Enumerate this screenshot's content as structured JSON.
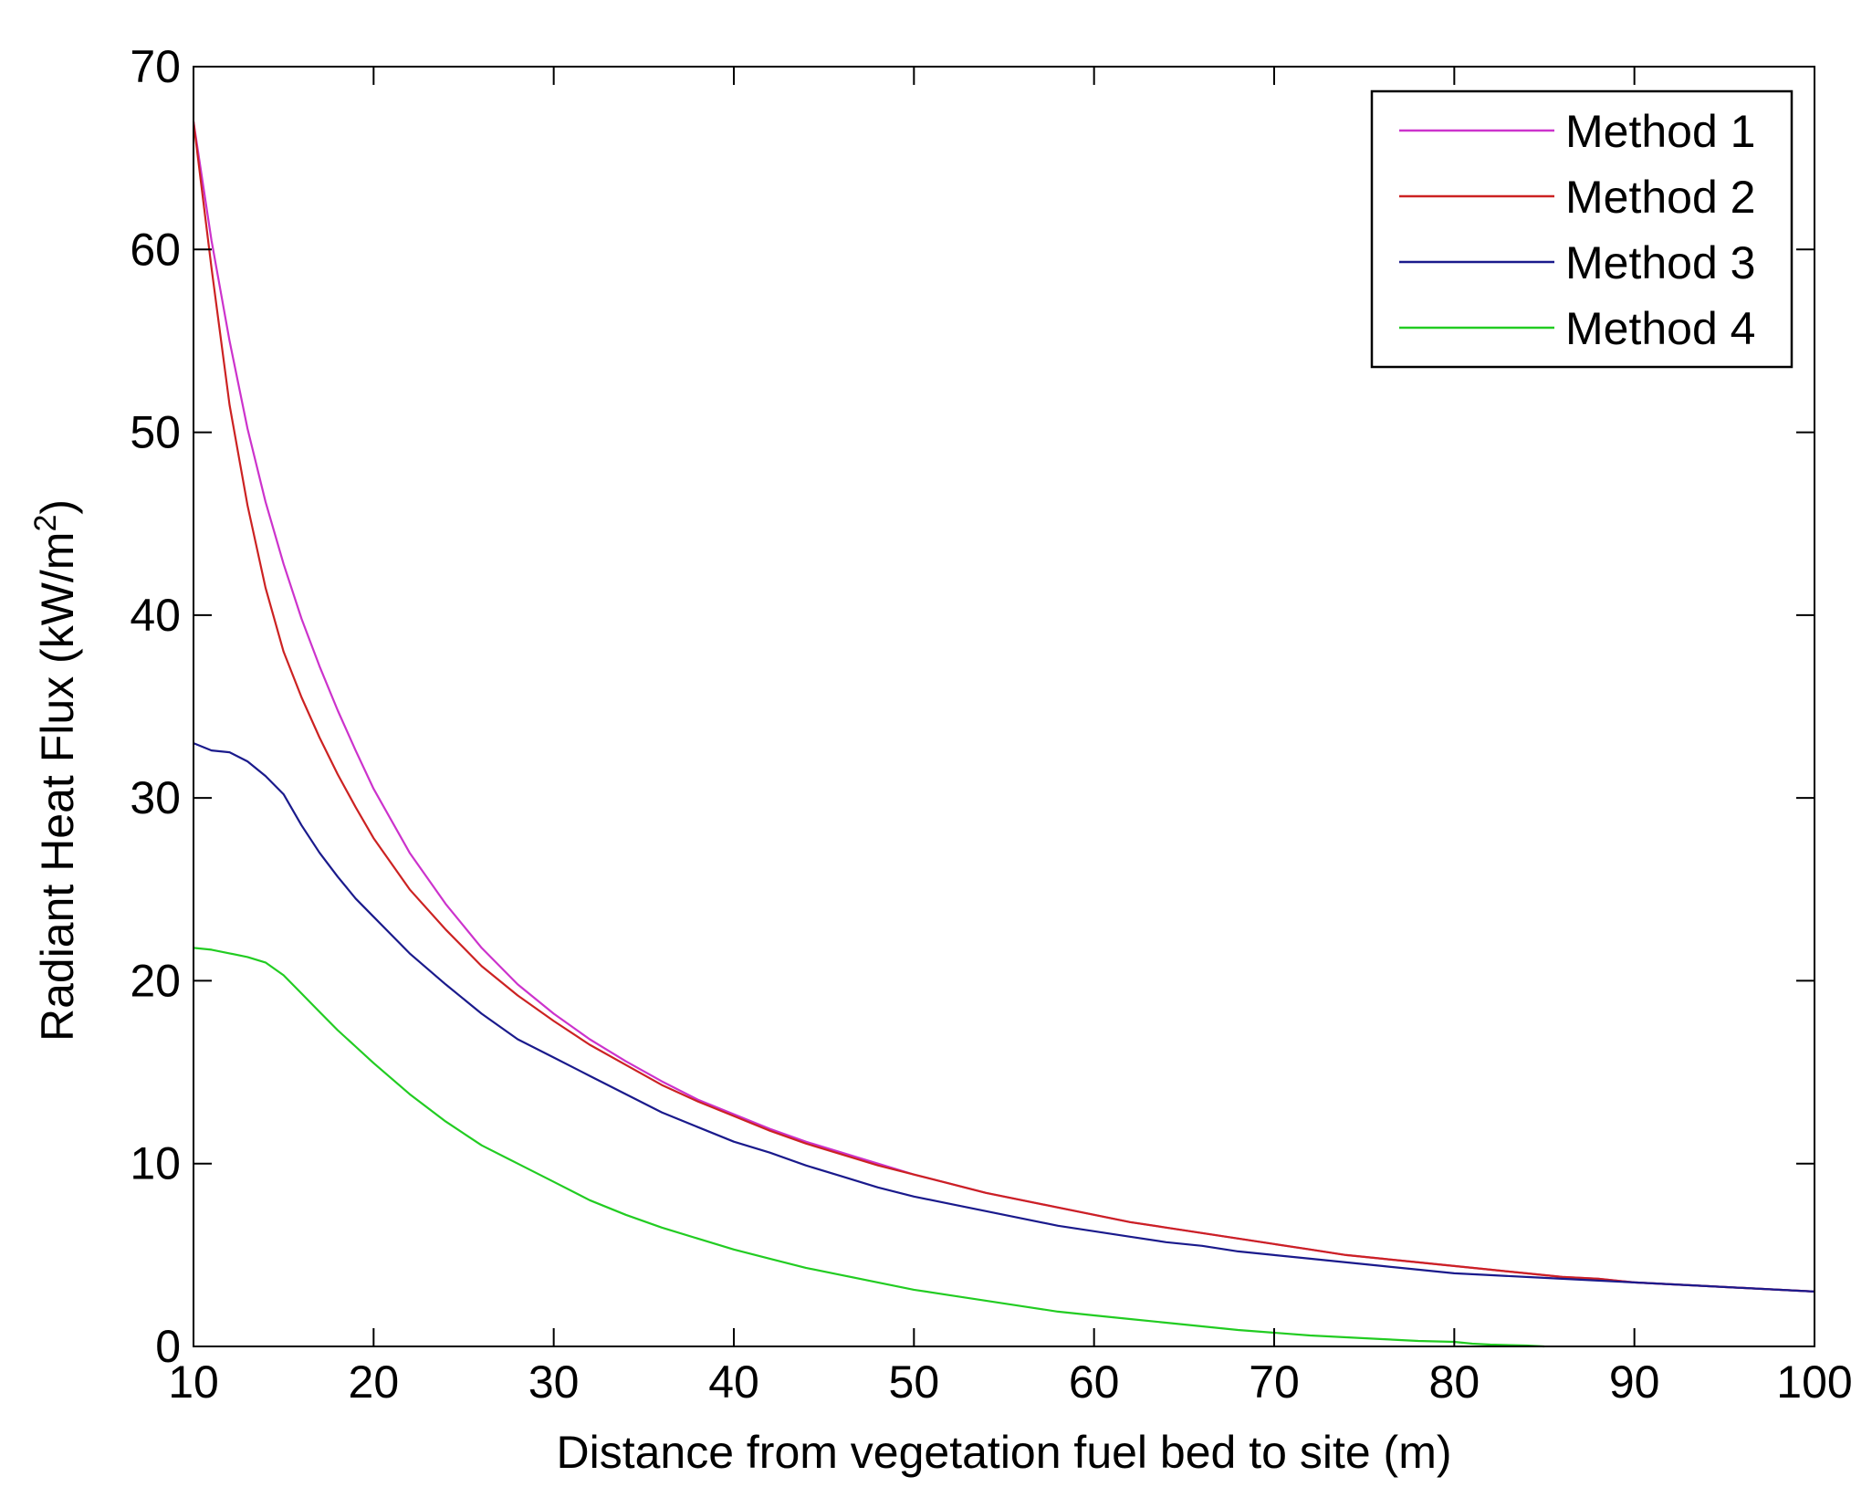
{
  "chart_data": {
    "type": "line",
    "title": "",
    "xlabel": "Distance from vegetation fuel bed to site (m)",
    "ylabel": "Radiant Heat Flux (kW/m",
    "ylabel_superscript": "2",
    "ylabel_suffix": ")",
    "xlim": [
      10,
      100
    ],
    "ylim": [
      0,
      70
    ],
    "xticks": [
      "10",
      "20",
      "30",
      "40",
      "50",
      "60",
      "70",
      "80",
      "90",
      "100"
    ],
    "yticks": [
      "0",
      "10",
      "20",
      "30",
      "40",
      "50",
      "60",
      "70"
    ],
    "grid": false,
    "legend_position": "top-right",
    "series": [
      {
        "name": "Method 1",
        "color": "#cc33cc",
        "x": [
          10,
          11,
          12,
          13,
          14,
          15,
          16,
          17,
          18,
          19,
          20,
          22,
          24,
          26,
          28,
          30,
          32,
          34,
          36,
          38,
          40,
          42,
          44,
          46,
          48,
          50,
          52,
          54,
          56,
          58,
          60,
          62,
          64,
          66,
          68,
          70,
          72,
          74,
          76,
          78,
          80,
          82,
          84,
          86,
          88,
          90,
          92,
          94,
          96,
          98,
          100
        ],
        "y": [
          67,
          60.5,
          55.0,
          50.2,
          46.2,
          42.8,
          39.8,
          37.2,
          34.8,
          32.6,
          30.5,
          27.0,
          24.2,
          21.8,
          19.8,
          18.2,
          16.8,
          15.6,
          14.5,
          13.5,
          12.7,
          11.9,
          11.2,
          10.6,
          10.0,
          9.4,
          8.9,
          8.4,
          8.0,
          7.6,
          7.2,
          6.8,
          6.5,
          6.2,
          5.9,
          5.6,
          5.3,
          5.0,
          4.8,
          4.6,
          4.4,
          4.2,
          4.0,
          3.8,
          3.7,
          3.5,
          3.4,
          3.3,
          3.2,
          3.1,
          3.0
        ]
      },
      {
        "name": "Method 2",
        "color": "#cc2222",
        "x": [
          10,
          11,
          12,
          13,
          14,
          15,
          16,
          17,
          18,
          19,
          20,
          22,
          24,
          26,
          28,
          30,
          32,
          34,
          36,
          38,
          40,
          42,
          44,
          46,
          48,
          50,
          52,
          54,
          56,
          58,
          60,
          62,
          64,
          66,
          68,
          70,
          72,
          74,
          76,
          78,
          80,
          82,
          84,
          86,
          88,
          90,
          92,
          94,
          96,
          98,
          100
        ],
        "y": [
          67,
          59.0,
          51.5,
          46.0,
          41.5,
          38.0,
          35.5,
          33.3,
          31.3,
          29.5,
          27.8,
          25.0,
          22.8,
          20.8,
          19.2,
          17.8,
          16.5,
          15.4,
          14.3,
          13.4,
          12.6,
          11.8,
          11.1,
          10.5,
          9.9,
          9.4,
          8.9,
          8.4,
          8.0,
          7.6,
          7.2,
          6.8,
          6.5,
          6.2,
          5.9,
          5.6,
          5.3,
          5.0,
          4.8,
          4.6,
          4.4,
          4.2,
          4.0,
          3.8,
          3.7,
          3.5,
          3.4,
          3.3,
          3.2,
          3.1,
          3.0
        ]
      },
      {
        "name": "Method 3",
        "color": "#1a1a8c",
        "x": [
          10,
          11,
          12,
          13,
          14,
          15,
          16,
          17,
          18,
          19,
          20,
          22,
          24,
          26,
          28,
          30,
          32,
          34,
          36,
          38,
          40,
          42,
          44,
          46,
          48,
          50,
          52,
          54,
          56,
          58,
          60,
          62,
          64,
          66,
          68,
          70,
          72,
          74,
          76,
          78,
          80,
          82,
          84,
          86,
          88,
          90,
          92,
          94,
          96,
          98,
          100
        ],
        "y": [
          33.0,
          32.6,
          32.5,
          32.0,
          31.2,
          30.2,
          28.5,
          27.0,
          25.7,
          24.5,
          23.5,
          21.5,
          19.8,
          18.2,
          16.8,
          15.8,
          14.8,
          13.8,
          12.8,
          12.0,
          11.2,
          10.6,
          9.9,
          9.3,
          8.7,
          8.2,
          7.8,
          7.4,
          7.0,
          6.6,
          6.3,
          6.0,
          5.7,
          5.5,
          5.2,
          5.0,
          4.8,
          4.6,
          4.4,
          4.2,
          4.0,
          3.9,
          3.8,
          3.7,
          3.6,
          3.5,
          3.4,
          3.3,
          3.2,
          3.1,
          3.0
        ]
      },
      {
        "name": "Method 4",
        "color": "#22cc22",
        "x": [
          10,
          11,
          12,
          13,
          14,
          15,
          16,
          17,
          18,
          19,
          20,
          22,
          24,
          26,
          28,
          30,
          32,
          34,
          36,
          38,
          40,
          42,
          44,
          46,
          48,
          50,
          52,
          54,
          56,
          58,
          60,
          62,
          64,
          66,
          68,
          70,
          72,
          74,
          76,
          78,
          80,
          81,
          82,
          84,
          85
        ],
        "y": [
          21.8,
          21.7,
          21.5,
          21.3,
          21.0,
          20.3,
          19.3,
          18.3,
          17.3,
          16.4,
          15.5,
          13.8,
          12.3,
          11.0,
          10.0,
          9.0,
          8.0,
          7.2,
          6.5,
          5.9,
          5.3,
          4.8,
          4.3,
          3.9,
          3.5,
          3.1,
          2.8,
          2.5,
          2.2,
          1.9,
          1.7,
          1.5,
          1.3,
          1.1,
          0.9,
          0.75,
          0.6,
          0.5,
          0.4,
          0.3,
          0.25,
          0.15,
          0.1,
          0.05,
          0.0
        ]
      }
    ]
  }
}
